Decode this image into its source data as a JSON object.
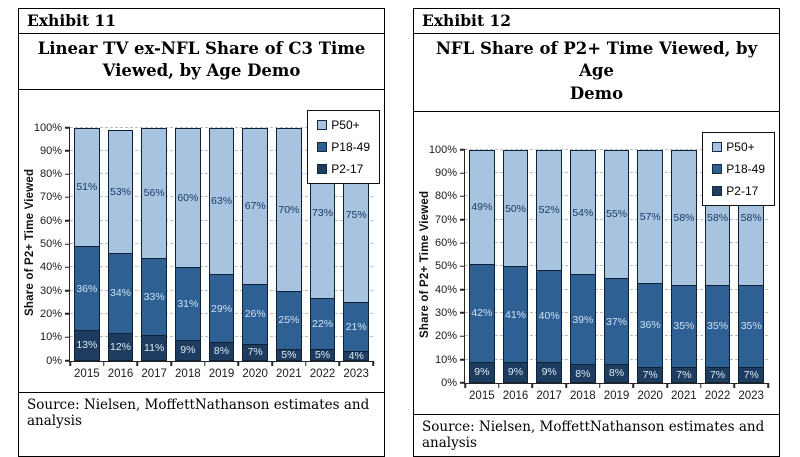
{
  "exhibits": [
    {
      "exhibit_label": "Exhibit 11",
      "title": "Linear TV ex-NFL Share of C3 Time\nViewed, by Age Demo",
      "source": "Source: Nielsen, MoffettNathanson estimates and analysis",
      "chart_data": {
        "type": "bar",
        "stacked": true,
        "title": "Linear TV ex-NFL Share of C3 Time Viewed, by Age Demo",
        "ylabel": "Share of P2+ Time Viewed",
        "ylim": [
          0,
          100
        ],
        "ytick_labels": [
          "0%",
          "10%",
          "20%",
          "30%",
          "40%",
          "50%",
          "60%",
          "70%",
          "80%",
          "90%",
          "100%"
        ],
        "grid": "horizontal-dashed",
        "legend_position": "top-right",
        "legend_order": [
          "P50+",
          "P18-49",
          "P2-17"
        ],
        "categories": [
          "2015",
          "2016",
          "2017",
          "2018",
          "2019",
          "2020",
          "2021",
          "2022",
          "2023"
        ],
        "series": [
          {
            "name": "P2-17",
            "color": "#1d3c5f",
            "label_color": "#dce8f4",
            "values": [
              13,
              12,
              11,
              9,
              8,
              7,
              5,
              5,
              4
            ]
          },
          {
            "name": "P18-49",
            "color": "#2f6093",
            "label_color": "#cfe0f1",
            "values": [
              36,
              34,
              33,
              31,
              29,
              26,
              25,
              22,
              21
            ]
          },
          {
            "name": "P50+",
            "color": "#a7c3e0",
            "label_color": "#17375d",
            "values": [
              51,
              53,
              56,
              60,
              63,
              67,
              70,
              73,
              75
            ]
          }
        ]
      }
    },
    {
      "exhibit_label": "Exhibit 12",
      "title": "NFL Share of P2+ Time Viewed, by Age\nDemo",
      "source": "Source: Nielsen, MoffettNathanson estimates and analysis",
      "chart_data": {
        "type": "bar",
        "stacked": true,
        "title": "NFL Share of P2+ Time Viewed, by Age Demo",
        "ylabel": "Share of P2+ Time Viewed",
        "ylim": [
          0,
          100
        ],
        "ytick_labels": [
          "0%",
          "10%",
          "20%",
          "30%",
          "40%",
          "50%",
          "60%",
          "70%",
          "80%",
          "90%",
          "100%"
        ],
        "grid": "horizontal-dashed",
        "legend_position": "top-right",
        "legend_order": [
          "P50+",
          "P18-49",
          "P2-17"
        ],
        "categories": [
          "2015",
          "2016",
          "2017",
          "2018",
          "2019",
          "2020",
          "2021",
          "2022",
          "2023"
        ],
        "series": [
          {
            "name": "P2-17",
            "color": "#1d3c5f",
            "label_color": "#dce8f4",
            "values": [
              9,
              9,
              9,
              8,
              8,
              7,
              7,
              7,
              7
            ]
          },
          {
            "name": "P18-49",
            "color": "#2f6093",
            "label_color": "#cfe0f1",
            "values": [
              42,
              41,
              40,
              39,
              37,
              36,
              35,
              35,
              35
            ]
          },
          {
            "name": "P50+",
            "color": "#a7c3e0",
            "label_color": "#17375d",
            "values": [
              49,
              50,
              52,
              54,
              55,
              57,
              58,
              58,
              58
            ]
          }
        ]
      }
    }
  ]
}
